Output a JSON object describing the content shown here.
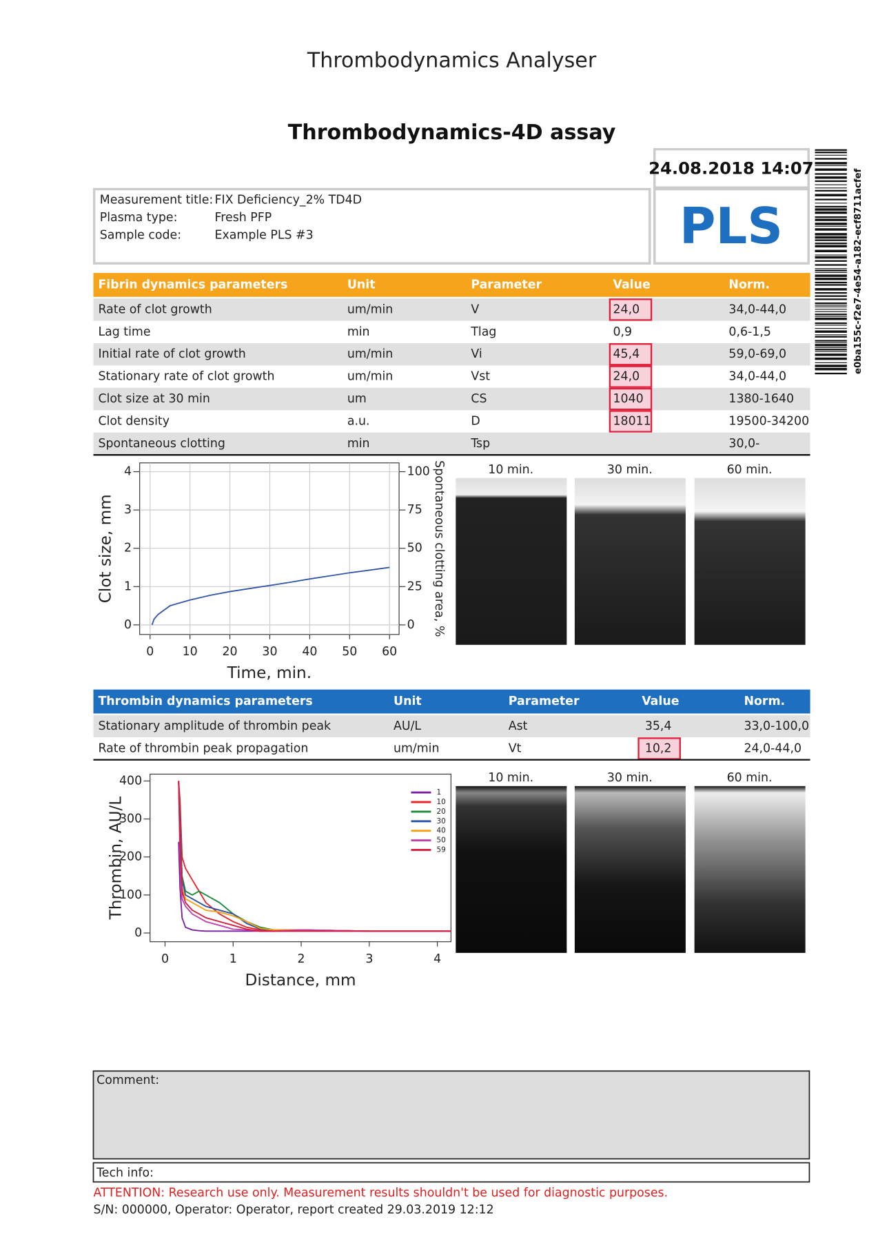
{
  "title": "Thrombodynamics Analyser",
  "assay": "Thrombodynamics-4D assay",
  "date": "24.08.2018 14:07",
  "sample_class": "PLS",
  "barcode_text": "e0ba155c-f2e7-4e54-a182-ecf8711acfef",
  "info": [
    {
      "label": "Measurement title:",
      "value": "FIX Deficiency_2% TD4D"
    },
    {
      "label": "Plasma type:",
      "value": "Fresh PFP"
    },
    {
      "label": "Sample code:",
      "value": "Example PLS #3"
    }
  ],
  "fibrin_table": {
    "columns": [
      "Fibrin dynamics parameters",
      "Unit",
      "Parameter",
      "Value",
      "Norm."
    ],
    "rows": [
      {
        "cells": [
          "Rate of clot growth",
          "um/min",
          "V",
          "24,0",
          "34,0-44,0"
        ],
        "flagged": true
      },
      {
        "cells": [
          "Lag time",
          "min",
          "Tlag",
          "0,9",
          "0,6-1,5"
        ],
        "flagged": false
      },
      {
        "cells": [
          "Initial rate of clot growth",
          "um/min",
          "Vi",
          "45,4",
          "59,0-69,0"
        ],
        "flagged": true
      },
      {
        "cells": [
          "Stationary rate of clot growth",
          "um/min",
          "Vst",
          "24,0",
          "34,0-44,0"
        ],
        "flagged": true
      },
      {
        "cells": [
          "Clot size at 30 min",
          "um",
          "CS",
          "1040",
          "1380-1640"
        ],
        "flagged": true
      },
      {
        "cells": [
          "Clot density",
          "a.u.",
          "D",
          "18011",
          "19500-34200"
        ],
        "flagged": true
      },
      {
        "cells": [
          "Spontaneous clotting",
          "min",
          "Tsp",
          null,
          "30,0-"
        ],
        "flagged": false
      }
    ]
  },
  "clot_chart": {
    "type": "line",
    "xlabel": "Time, min.",
    "ylabel": "Clot size, mm",
    "y2label": "Spontaneous clotting area, %",
    "color": "#3355aa",
    "x": [
      0.5,
      1,
      2,
      5,
      10,
      15,
      20,
      25,
      30,
      35,
      40,
      45,
      50,
      55,
      60
    ],
    "values": [
      0,
      0.15,
      0.27,
      0.5,
      0.65,
      0.77,
      0.87,
      0.95,
      1.03,
      1.11,
      1.2,
      1.28,
      1.36,
      1.43,
      1.5
    ],
    "xlim": [
      -2.6,
      62.4
    ],
    "ylim": [
      -0.25,
      4.23
    ],
    "y2lim": [
      -6.25,
      105.75
    ],
    "xticks": [
      0,
      10,
      20,
      30,
      40,
      50,
      60
    ],
    "yticks": [
      0,
      1,
      2,
      3,
      4
    ],
    "y2ticks": [
      0,
      25,
      50,
      75,
      100
    ],
    "grid": true
  },
  "fibrin_images": [
    "10 min.",
    "30 min.",
    "60 min."
  ],
  "thrombin_table": {
    "columns": [
      "Thrombin dynamics parameters",
      "Unit",
      "Parameter",
      "Value",
      "Norm."
    ],
    "rows": [
      {
        "cells": [
          "Stationary amplitude of thrombin peak",
          "AU/L",
          "Ast",
          "35,4",
          "33,0-100,0"
        ],
        "flagged": false
      },
      {
        "cells": [
          "Rate of thrombin peak propagation",
          "um/min",
          "Vt",
          "10,2",
          "24,0-44,0"
        ],
        "flagged": true
      }
    ]
  },
  "thrombin_chart": {
    "type": "line",
    "xlabel": "Distance, mm",
    "ylabel": "Thrombin, AU/L",
    "x": [
      0.2,
      0.22,
      0.25,
      0.3,
      0.4,
      0.5,
      0.6,
      0.8,
      1.0,
      1.2,
      1.4,
      1.6,
      2.0,
      3.0,
      4.2
    ],
    "series": [
      {
        "name": "1",
        "color": "#7a1fa2",
        "values": [
          240,
          120,
          40,
          15,
          8,
          6,
          5,
          5,
          5,
          5,
          5,
          5,
          5,
          5,
          5
        ]
      },
      {
        "name": "10",
        "color": "#e8232a",
        "values": [
          400,
          350,
          200,
          170,
          140,
          110,
          80,
          50,
          30,
          15,
          8,
          5,
          8,
          5,
          5
        ]
      },
      {
        "name": "20",
        "color": "#1a8a3a",
        "values": [
          400,
          300,
          150,
          110,
          100,
          110,
          100,
          80,
          50,
          30,
          15,
          8,
          8,
          5,
          5
        ]
      },
      {
        "name": "30",
        "color": "#2a4fa8",
        "values": [
          400,
          300,
          140,
          100,
          90,
          80,
          70,
          60,
          50,
          25,
          10,
          8,
          8,
          5,
          5
        ]
      },
      {
        "name": "40",
        "color": "#f5a316",
        "values": [
          400,
          250,
          120,
          90,
          80,
          70,
          60,
          55,
          45,
          30,
          12,
          8,
          8,
          5,
          5
        ]
      },
      {
        "name": "50",
        "color": "#c040b0",
        "values": [
          400,
          200,
          90,
          70,
          50,
          40,
          30,
          20,
          10,
          8,
          5,
          5,
          8,
          5,
          5
        ]
      },
      {
        "name": "59",
        "color": "#d81b3c",
        "values": [
          400,
          250,
          110,
          80,
          60,
          50,
          40,
          30,
          20,
          10,
          5,
          5,
          5,
          5,
          5
        ]
      }
    ],
    "xlim": [
      -0.22,
      4.2
    ],
    "ylim": [
      -23,
      418
    ],
    "xticks": [
      0,
      1,
      2,
      3,
      4
    ],
    "yticks": [
      0,
      100,
      200,
      300,
      400
    ],
    "grid": false
  },
  "thrombin_images": [
    "10 min.",
    "30 min.",
    "60 min."
  ],
  "comment_label": "Comment:",
  "tech_info_label": "Tech info:",
  "attention": "ATTENTION: Research use only. Measurement results shouldn't be used for diagnostic purposes.",
  "footer": "S/N: 000000, Operator: Operator, report created 29.03.2019 12:12"
}
